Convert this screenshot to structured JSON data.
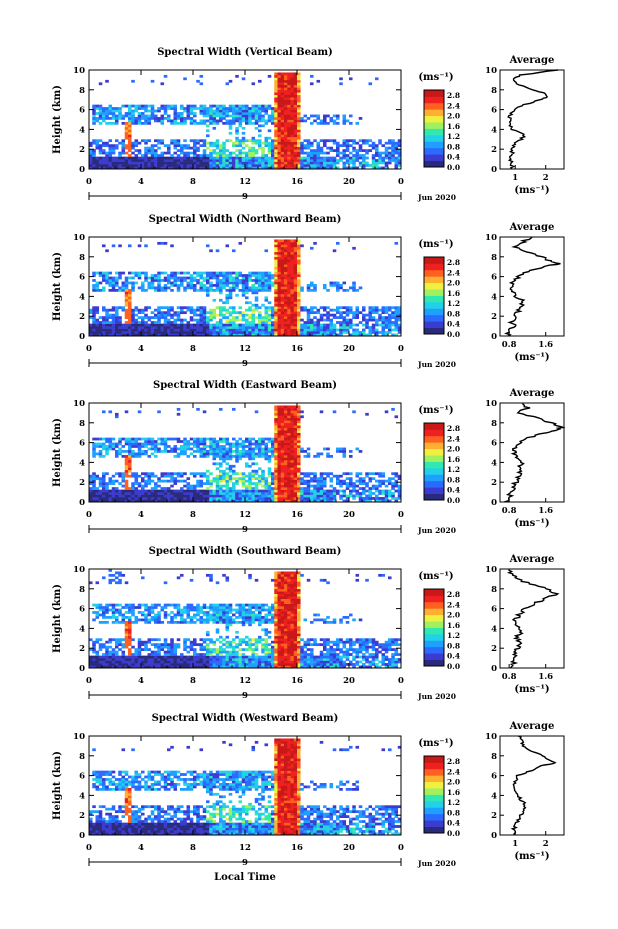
{
  "figure": {
    "x_label": "Local Time",
    "x_ticks": [
      "0",
      "4",
      "8",
      "12",
      "16",
      "20",
      "0"
    ],
    "date_tick": "9",
    "date_label": "Jun 2020",
    "y_label": "Height (km)",
    "y_ticks": [
      "0",
      "2",
      "4",
      "6",
      "8",
      "10"
    ],
    "colorbar_unit": "(ms⁻¹)",
    "colorbar_ticks": [
      "0.0",
      "0.4",
      "0.8",
      "1.2",
      "1.6",
      "2.0",
      "2.4",
      "2.8"
    ],
    "avg_title": "Average",
    "avg_unit": "(ms⁻¹)"
  },
  "colors": {
    "scale": [
      "#2a2a7a",
      "#3b3bd0",
      "#2a6aff",
      "#1ea0ff",
      "#22d0e8",
      "#30e8b0",
      "#a0f060",
      "#f0f040",
      "#ffb030",
      "#ff6020",
      "#ee2020",
      "#c81818"
    ]
  },
  "chart_data": [
    {
      "type": "heatmap",
      "title": "Spectral Width (Vertical Beam)",
      "xlabel": "Local Time",
      "ylabel": "Height (km)",
      "xlim": [
        0,
        24
      ],
      "ylim": [
        0,
        10
      ],
      "clim": [
        0,
        3.0
      ],
      "avg": {
        "type": "line",
        "title": "Average",
        "xlabel": "(ms⁻¹)",
        "xlim": [
          0.5,
          2.6
        ],
        "ylim": [
          0,
          10
        ],
        "xticks": [
          "1",
          "2"
        ],
        "xtick_values": [
          1,
          2
        ],
        "profile": [
          [
            0,
            0.9
          ],
          [
            0.5,
            0.9
          ],
          [
            1,
            0.85
          ],
          [
            1.5,
            0.9
          ],
          [
            2,
            0.9
          ],
          [
            2.5,
            0.95
          ],
          [
            3,
            1.2
          ],
          [
            3.5,
            1.3
          ],
          [
            4,
            0.9
          ],
          [
            4.5,
            0.85
          ],
          [
            5,
            0.8
          ],
          [
            5.5,
            0.85
          ],
          [
            6,
            0.95
          ],
          [
            6.5,
            1.3
          ],
          [
            7,
            1.8
          ],
          [
            7.3,
            2.1
          ],
          [
            7.6,
            2.0
          ],
          [
            8,
            1.6
          ],
          [
            8.5,
            1.1
          ],
          [
            9,
            0.9
          ],
          [
            9.5,
            1.2
          ],
          [
            10,
            2.4
          ]
        ]
      }
    },
    {
      "type": "heatmap",
      "title": "Spectral Width (Northward Beam)",
      "xlabel": "Local Time",
      "ylabel": "Height (km)",
      "xlim": [
        0,
        24
      ],
      "ylim": [
        0,
        10
      ],
      "clim": [
        0,
        3.0
      ],
      "avg": {
        "type": "line",
        "title": "Average",
        "xlabel": "(ms⁻¹)",
        "xlim": [
          0.6,
          2.0
        ],
        "ylim": [
          0,
          10
        ],
        "xticks": [
          "0.8",
          "1.6"
        ],
        "xtick_values": [
          0.8,
          1.6
        ],
        "profile": [
          [
            0,
            0.75
          ],
          [
            0.5,
            0.8
          ],
          [
            1,
            0.9
          ],
          [
            1.5,
            0.85
          ],
          [
            2,
            0.95
          ],
          [
            2.5,
            1.0
          ],
          [
            3,
            1.05
          ],
          [
            3.5,
            1.1
          ],
          [
            4,
            0.95
          ],
          [
            4.5,
            0.85
          ],
          [
            5,
            0.85
          ],
          [
            5.5,
            0.9
          ],
          [
            6,
            1.0
          ],
          [
            6.5,
            1.2
          ],
          [
            7,
            1.55
          ],
          [
            7.3,
            1.9
          ],
          [
            7.6,
            1.7
          ],
          [
            8,
            1.5
          ],
          [
            8.5,
            1.2
          ],
          [
            9,
            0.9
          ],
          [
            9.5,
            1.1
          ],
          [
            10,
            1.3
          ]
        ]
      }
    },
    {
      "type": "heatmap",
      "title": "Spectral Width (Eastward Beam)",
      "xlabel": "Local Time",
      "ylabel": "Height (km)",
      "xlim": [
        0,
        24
      ],
      "ylim": [
        0,
        10
      ],
      "clim": [
        0,
        3.0
      ],
      "avg": {
        "type": "line",
        "title": "Average",
        "xlabel": "(ms⁻¹)",
        "xlim": [
          0.6,
          2.0
        ],
        "ylim": [
          0,
          10
        ],
        "xticks": [
          "0.8",
          "1.6"
        ],
        "xtick_values": [
          0.8,
          1.6
        ],
        "profile": [
          [
            0,
            0.75
          ],
          [
            0.5,
            0.8
          ],
          [
            1,
            0.85
          ],
          [
            1.5,
            0.9
          ],
          [
            2,
            0.95
          ],
          [
            2.5,
            1.0
          ],
          [
            3,
            1.05
          ],
          [
            3.5,
            1.0
          ],
          [
            4,
            1.1
          ],
          [
            4.5,
            0.95
          ],
          [
            5,
            0.9
          ],
          [
            5.5,
            0.95
          ],
          [
            6,
            1.05
          ],
          [
            6.5,
            1.25
          ],
          [
            7,
            1.6
          ],
          [
            7.3,
            1.85
          ],
          [
            7.6,
            1.95
          ],
          [
            8,
            1.7
          ],
          [
            8.5,
            1.4
          ],
          [
            9,
            1.0
          ],
          [
            9.5,
            1.2
          ],
          [
            10,
            1.1
          ]
        ]
      }
    },
    {
      "type": "heatmap",
      "title": "Spectral Width (Southward Beam)",
      "xlabel": "Local Time",
      "ylabel": "Height (km)",
      "xlim": [
        0,
        24
      ],
      "ylim": [
        0,
        10
      ],
      "clim": [
        0,
        3.0
      ],
      "avg": {
        "type": "line",
        "title": "Average",
        "xlabel": "(ms⁻¹)",
        "xlim": [
          0.6,
          2.0
        ],
        "ylim": [
          0,
          10
        ],
        "xticks": [
          "0.8",
          "1.6"
        ],
        "xtick_values": [
          0.8,
          1.6
        ],
        "profile": [
          [
            0,
            0.85
          ],
          [
            0.5,
            0.9
          ],
          [
            1,
            0.95
          ],
          [
            1.5,
            0.9
          ],
          [
            2,
            1.0
          ],
          [
            2.5,
            1.05
          ],
          [
            3,
            0.95
          ],
          [
            3.5,
            1.05
          ],
          [
            4,
            1.0
          ],
          [
            4.5,
            0.9
          ],
          [
            5,
            0.95
          ],
          [
            5.5,
            1.05
          ],
          [
            6,
            1.15
          ],
          [
            6.5,
            1.35
          ],
          [
            7,
            1.6
          ],
          [
            7.5,
            1.85
          ],
          [
            8,
            1.6
          ],
          [
            8.5,
            1.3
          ],
          [
            9,
            0.95
          ],
          [
            9.5,
            0.85
          ],
          [
            10,
            0.8
          ]
        ]
      }
    },
    {
      "type": "heatmap",
      "title": "Spectral Width (Westward Beam)",
      "xlabel": "Local Time",
      "ylabel": "Height (km)",
      "xlim": [
        0,
        24
      ],
      "ylim": [
        0,
        10
      ],
      "clim": [
        0,
        3.0
      ],
      "avg": {
        "type": "line",
        "title": "Average",
        "xlabel": "(ms⁻¹)",
        "xlim": [
          0.5,
          2.6
        ],
        "ylim": [
          0,
          10
        ],
        "xticks": [
          "1",
          "2"
        ],
        "xtick_values": [
          1,
          2
        ],
        "profile": [
          [
            0,
            1.0
          ],
          [
            0.5,
            0.95
          ],
          [
            1,
            1.0
          ],
          [
            1.5,
            1.1
          ],
          [
            2,
            1.2
          ],
          [
            2.5,
            1.3
          ],
          [
            3,
            1.35
          ],
          [
            3.5,
            1.2
          ],
          [
            4,
            1.1
          ],
          [
            4.5,
            1.0
          ],
          [
            5,
            0.95
          ],
          [
            5.5,
            1.0
          ],
          [
            6,
            1.1
          ],
          [
            6.5,
            1.5
          ],
          [
            7,
            1.9
          ],
          [
            7.3,
            2.3
          ],
          [
            7.6,
            2.1
          ],
          [
            8,
            1.9
          ],
          [
            8.5,
            1.5
          ],
          [
            9,
            1.2
          ],
          [
            9.5,
            1.3
          ],
          [
            10,
            1.1
          ]
        ]
      }
    }
  ]
}
